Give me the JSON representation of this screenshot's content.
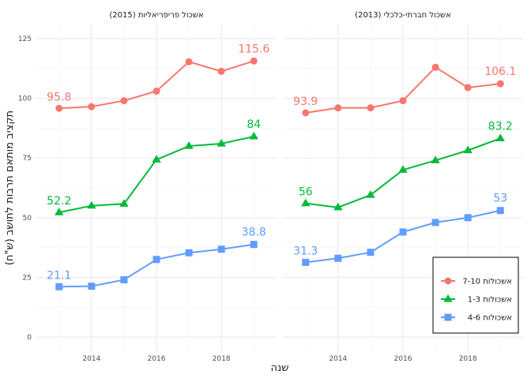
{
  "chart_data": {
    "type": "line",
    "xlabel": "שנה",
    "ylabel": "תקציב מותאם תרבות לתושב (ש\"ח)",
    "ylim": [
      0,
      125
    ],
    "y_ticks": [
      0,
      25,
      50,
      75,
      100,
      125
    ],
    "xlim": [
      2012.3,
      2019.7
    ],
    "x_ticks": [
      2014,
      2016,
      2018
    ],
    "grid": true,
    "legend_position": "bottom-right",
    "series_styles": [
      {
        "name": "אשכולות 7-10",
        "color": "#F8766D",
        "marker": "circle"
      },
      {
        "name": "אשכולות 1-3",
        "color": "#00BA38",
        "marker": "triangle"
      },
      {
        "name": "אשכולות 4-6",
        "color": "#619CFF",
        "marker": "square"
      }
    ],
    "panels": [
      {
        "title": "אשכול פריפריאליות (2015)",
        "x": [
          2013,
          2014,
          2015,
          2016,
          2017,
          2018,
          2019
        ],
        "series": [
          {
            "name": "אשכולות 7-10",
            "values": [
              95.8,
              96.5,
              99.0,
              103.0,
              115.3,
              111.3,
              115.6
            ],
            "label_first": "95.8",
            "label_last": "115.6"
          },
          {
            "name": "אשכולות 1-3",
            "values": [
              52.2,
              55.0,
              55.8,
              74.3,
              80.0,
              81.0,
              84.0
            ],
            "label_first": "52.2",
            "label_last": "84"
          },
          {
            "name": "אשכולות 4-6",
            "values": [
              21.1,
              21.3,
              24.0,
              32.5,
              35.3,
              36.8,
              38.8
            ],
            "label_first": "21.1",
            "label_last": "38.8"
          }
        ]
      },
      {
        "title": "אשכול חברתי-כלכלי (2013)",
        "x": [
          2013,
          2014,
          2015,
          2016,
          2017,
          2018,
          2019
        ],
        "series": [
          {
            "name": "אשכולות 7-10",
            "values": [
              93.9,
              96.0,
              96.0,
              99.0,
              113.0,
              104.5,
              106.1
            ],
            "label_first": "93.9",
            "label_last": "106.1"
          },
          {
            "name": "אשכולות 1-3",
            "values": [
              56.0,
              54.3,
              59.5,
              70.0,
              74.0,
              78.2,
              83.2
            ],
            "label_first": "56",
            "label_last": "83.2"
          },
          {
            "name": "אשכולות 4-6",
            "values": [
              31.3,
              33.0,
              35.5,
              44.0,
              48.0,
              50.0,
              53.0
            ],
            "label_first": "31.3",
            "label_last": "53"
          }
        ]
      }
    ]
  }
}
